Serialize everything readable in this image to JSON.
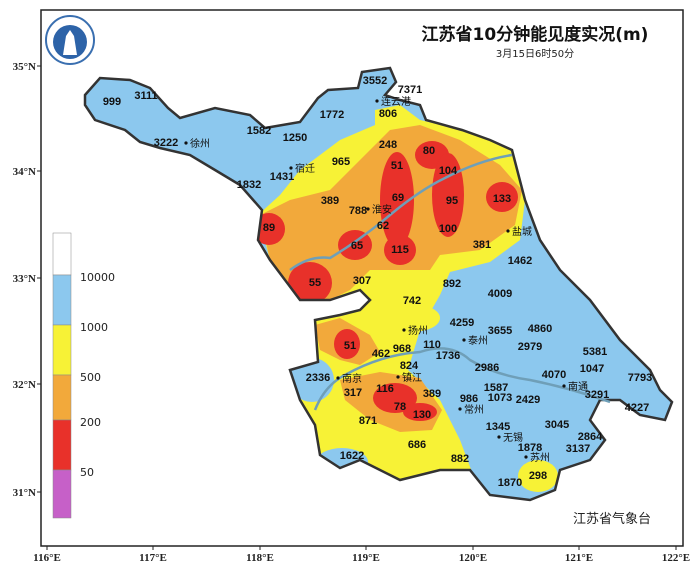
{
  "title": "江苏省10分钟能见度实况(m)",
  "subtitle": "3月15日6时50分",
  "footer": "江苏省气象台",
  "logo": "江苏省气象台 logo",
  "axes": {
    "x_ticks": [
      "116°E",
      "117°E",
      "118°E",
      "119°E",
      "120°E",
      "121°E",
      "122°E"
    ],
    "y_ticks": [
      "35°N",
      "34°N",
      "33°N",
      "32°N",
      "31°N"
    ]
  },
  "legend": {
    "labels": [
      "10000",
      "1000",
      "500",
      "200",
      "50"
    ],
    "colors": [
      "#ffffff",
      "#8cc8ee",
      "#f7f236",
      "#f2a93b",
      "#e8312a",
      "#c660c8"
    ]
  },
  "colors": {
    "blue": "#8cc8ee",
    "yellow": "#f7f236",
    "orange": "#f2a93b",
    "red": "#e8312a",
    "river": "#6f9fb8"
  },
  "cities": [
    "徐州",
    "宿迁",
    "连云港",
    "淮安",
    "盐城",
    "扬州",
    "泰州",
    "南京",
    "镇江",
    "南通",
    "常州",
    "无锡",
    "苏州"
  ],
  "stations": [
    "999",
    "3111",
    "3222",
    "1582",
    "1250",
    "1772",
    "3552",
    "7371",
    "806",
    "248",
    "965",
    "1431",
    "1832",
    "51",
    "80",
    "104",
    "389",
    "788",
    "69",
    "95",
    "133",
    "89",
    "62",
    "100",
    "65",
    "115",
    "381",
    "1462",
    "55",
    "307",
    "892",
    "742",
    "4009",
    "4259",
    "3655",
    "4860",
    "51",
    "968",
    "110",
    "462",
    "2979",
    "5381",
    "1736",
    "2986",
    "824",
    "4070",
    "1047",
    "7793",
    "2336",
    "317",
    "116",
    "389",
    "1587",
    "1073",
    "2429",
    "3291",
    "986",
    "4227",
    "78",
    "130",
    "871",
    "1345",
    "3045",
    "2864",
    "3137",
    "686",
    "1878",
    "1622",
    "882",
    "298",
    "1870"
  ]
}
